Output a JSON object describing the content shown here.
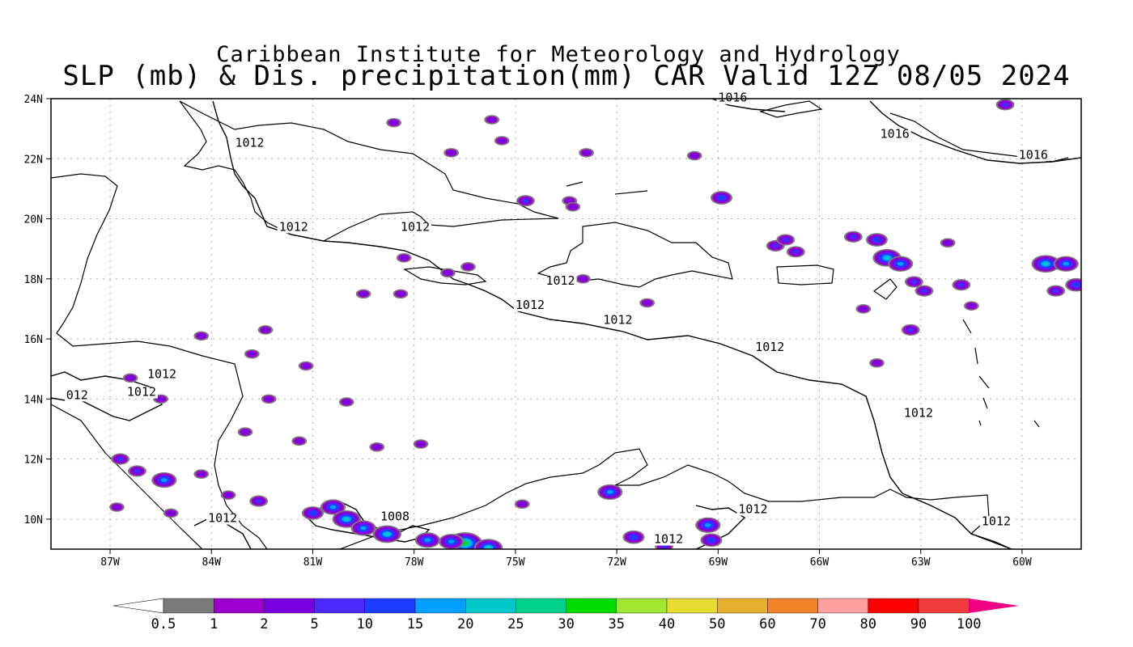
{
  "title": {
    "line1": "Caribbean Institute for Meteorology and Hydrology",
    "line2": "SLP (mb) & Dis. precipitation(mm) CAR Valid 12Z 08/05 2024"
  },
  "map": {
    "lon_ticks": [
      "87W",
      "84W",
      "81W",
      "78W",
      "75W",
      "72W",
      "69W",
      "66W",
      "63W",
      "60W"
    ],
    "lat_ticks": [
      "24N",
      "22N",
      "20N",
      "18N",
      "16N",
      "14N",
      "12N",
      "10N"
    ],
    "lon_range": [
      -88.75,
      -58.25
    ],
    "lat_range": [
      9.0,
      24.0
    ],
    "grid": true,
    "isobar_labels": [
      {
        "text": "1016",
        "lon": -69.0,
        "lat": 23.9
      },
      {
        "text": "1016",
        "lon": -64.2,
        "lat": 22.7
      },
      {
        "text": "1016",
        "lon": -60.1,
        "lat": 22.0
      },
      {
        "text": "1012",
        "lon": -83.3,
        "lat": 22.4
      },
      {
        "text": "1012",
        "lon": -82.0,
        "lat": 19.6
      },
      {
        "text": "1012",
        "lon": -78.4,
        "lat": 19.6
      },
      {
        "text": "1012",
        "lon": -74.1,
        "lat": 17.8
      },
      {
        "text": "1012",
        "lon": -75.0,
        "lat": 17.0
      },
      {
        "text": "1012",
        "lon": -72.4,
        "lat": 16.5
      },
      {
        "text": "1012",
        "lon": -67.9,
        "lat": 15.6
      },
      {
        "text": "1012",
        "lon": -63.5,
        "lat": 13.4
      },
      {
        "text": "1012",
        "lon": -85.9,
        "lat": 14.7
      },
      {
        "text": "1012",
        "lon": -86.5,
        "lat": 14.1
      },
      {
        "text": "012",
        "lon": -88.3,
        "lat": 14.0
      },
      {
        "text": "1012",
        "lon": -84.1,
        "lat": 9.9
      },
      {
        "text": "1008",
        "lon": -79.0,
        "lat": 9.95
      },
      {
        "text": "1012",
        "lon": -68.4,
        "lat": 10.2
      },
      {
        "text": "1012",
        "lon": -70.9,
        "lat": 9.2
      },
      {
        "text": "1012",
        "lon": -61.2,
        "lat": 9.8
      }
    ],
    "precip_cells": [
      {
        "lon": -68.9,
        "lat": 20.7,
        "level": 4
      },
      {
        "lon": -74.7,
        "lat": 20.6,
        "level": 3
      },
      {
        "lon": -73.4,
        "lat": 20.6,
        "level": 2
      },
      {
        "lon": -73.3,
        "lat": 20.4,
        "level": 2
      },
      {
        "lon": -66.7,
        "lat": 18.9,
        "level": 3
      },
      {
        "lon": -67.3,
        "lat": 19.1,
        "level": 3
      },
      {
        "lon": -67.0,
        "lat": 19.3,
        "level": 3
      },
      {
        "lon": -65.0,
        "lat": 19.4,
        "level": 3
      },
      {
        "lon": -64.3,
        "lat": 19.3,
        "level": 4
      },
      {
        "lon": -64.0,
        "lat": 18.7,
        "level": 6
      },
      {
        "lon": -63.6,
        "lat": 18.5,
        "level": 5
      },
      {
        "lon": -62.2,
        "lat": 19.2,
        "level": 2
      },
      {
        "lon": -61.8,
        "lat": 17.8,
        "level": 3
      },
      {
        "lon": -63.2,
        "lat": 17.9,
        "level": 3
      },
      {
        "lon": -62.9,
        "lat": 17.6,
        "level": 3
      },
      {
        "lon": -59.3,
        "lat": 18.5,
        "level": 6
      },
      {
        "lon": -58.7,
        "lat": 18.5,
        "level": 5
      },
      {
        "lon": -58.4,
        "lat": 17.8,
        "level": 4
      },
      {
        "lon": -59.0,
        "lat": 17.6,
        "level": 3
      },
      {
        "lon": -61.5,
        "lat": 17.1,
        "level": 2
      },
      {
        "lon": -64.7,
        "lat": 17.0,
        "level": 2
      },
      {
        "lon": -63.3,
        "lat": 16.3,
        "level": 3
      },
      {
        "lon": -78.4,
        "lat": 17.5,
        "level": 2
      },
      {
        "lon": -77.0,
        "lat": 18.2,
        "level": 2
      },
      {
        "lon": -79.5,
        "lat": 17.5,
        "level": 2
      },
      {
        "lon": -71.1,
        "lat": 17.2,
        "level": 2
      },
      {
        "lon": -76.4,
        "lat": 18.4,
        "level": 2
      },
      {
        "lon": -73.0,
        "lat": 18.0,
        "level": 2
      },
      {
        "lon": -78.3,
        "lat": 18.7,
        "level": 2
      },
      {
        "lon": -84.3,
        "lat": 16.1,
        "level": 2
      },
      {
        "lon": -82.4,
        "lat": 16.3,
        "level": 2
      },
      {
        "lon": -81.2,
        "lat": 15.1,
        "level": 2
      },
      {
        "lon": -80.0,
        "lat": 13.9,
        "level": 2
      },
      {
        "lon": -82.3,
        "lat": 14.0,
        "level": 2
      },
      {
        "lon": -83.0,
        "lat": 12.9,
        "level": 2
      },
      {
        "lon": -81.4,
        "lat": 12.6,
        "level": 2
      },
      {
        "lon": -85.4,
        "lat": 11.3,
        "level": 5
      },
      {
        "lon": -86.2,
        "lat": 11.6,
        "level": 3
      },
      {
        "lon": -86.7,
        "lat": 12.0,
        "level": 3
      },
      {
        "lon": -84.3,
        "lat": 11.5,
        "level": 2
      },
      {
        "lon": -85.2,
        "lat": 10.2,
        "level": 2
      },
      {
        "lon": -86.8,
        "lat": 10.4,
        "level": 2
      },
      {
        "lon": -82.6,
        "lat": 10.6,
        "level": 3
      },
      {
        "lon": -83.5,
        "lat": 10.8,
        "level": 2
      },
      {
        "lon": -81.0,
        "lat": 10.2,
        "level": 4
      },
      {
        "lon": -80.4,
        "lat": 10.4,
        "level": 5
      },
      {
        "lon": -80.0,
        "lat": 10.0,
        "level": 6
      },
      {
        "lon": -79.5,
        "lat": 9.7,
        "level": 5
      },
      {
        "lon": -78.8,
        "lat": 9.5,
        "level": 6
      },
      {
        "lon": -77.6,
        "lat": 9.3,
        "level": 5
      },
      {
        "lon": -76.5,
        "lat": 9.2,
        "level": 8
      },
      {
        "lon": -75.8,
        "lat": 9.05,
        "level": 6
      },
      {
        "lon": -76.9,
        "lat": 9.25,
        "level": 5
      },
      {
        "lon": -72.2,
        "lat": 10.9,
        "level": 5
      },
      {
        "lon": -71.5,
        "lat": 9.4,
        "level": 4
      },
      {
        "lon": -69.3,
        "lat": 9.8,
        "level": 5
      },
      {
        "lon": -69.2,
        "lat": 9.3,
        "level": 4
      },
      {
        "lon": -70.6,
        "lat": 9.1,
        "level": 3
      },
      {
        "lon": -74.8,
        "lat": 10.5,
        "level": 2
      },
      {
        "lon": -77.8,
        "lat": 12.5,
        "level": 2
      },
      {
        "lon": -79.1,
        "lat": 12.4,
        "level": 2
      },
      {
        "lon": -75.4,
        "lat": 22.6,
        "level": 2
      },
      {
        "lon": -76.9,
        "lat": 22.2,
        "level": 2
      },
      {
        "lon": -78.6,
        "lat": 23.2,
        "level": 2
      },
      {
        "lon": -60.5,
        "lat": 23.8,
        "level": 3
      },
      {
        "lon": -69.7,
        "lat": 22.1,
        "level": 2
      },
      {
        "lon": -72.9,
        "lat": 22.2,
        "level": 2
      },
      {
        "lon": -75.7,
        "lat": 23.3,
        "level": 2
      },
      {
        "lon": -82.8,
        "lat": 15.5,
        "level": 2
      },
      {
        "lon": -64.3,
        "lat": 15.2,
        "level": 2
      },
      {
        "lon": -85.5,
        "lat": 14.0,
        "level": 2
      },
      {
        "lon": -86.4,
        "lat": 14.7,
        "level": 2
      }
    ]
  },
  "colorbar": {
    "labels": [
      "0.5",
      "1",
      "2",
      "5",
      "10",
      "15",
      "20",
      "25",
      "30",
      "35",
      "40",
      "50",
      "60",
      "70",
      "80",
      "90",
      "100"
    ],
    "colors": [
      "#7a7a7a",
      "#9b00cc",
      "#7a00e0",
      "#4b28ff",
      "#1e3cff",
      "#00a0ff",
      "#00c8c8",
      "#00d28c",
      "#00dc00",
      "#a0e632",
      "#e6dc32",
      "#e6af2d",
      "#f08228",
      "#ffa0a0",
      "#ff0000",
      "#f03c3c"
    ],
    "under_color": "#ffffff",
    "over_color": "#f00082"
  }
}
